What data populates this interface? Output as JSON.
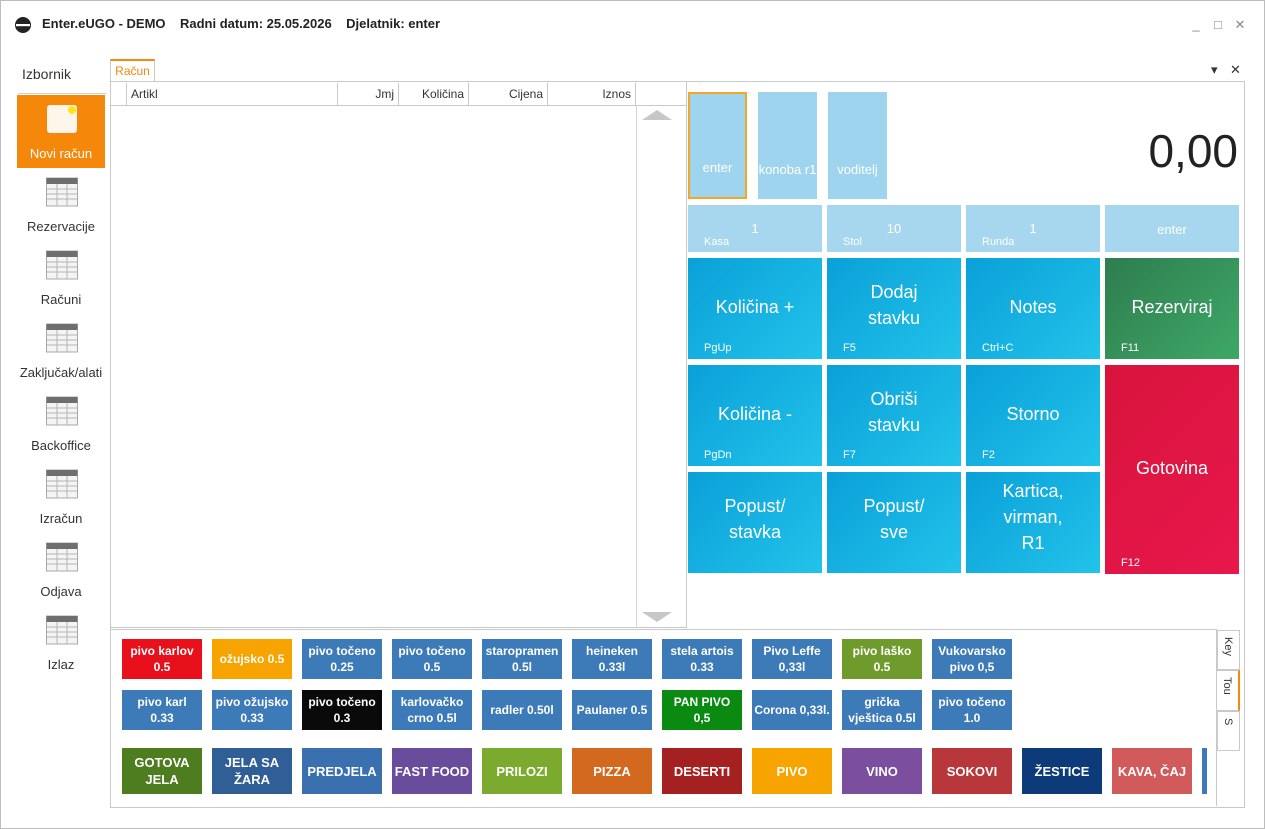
{
  "window": {
    "title": "Enter.eUGO - DEMO    Radni datum: 25.05.2026    Djelatnik: enter",
    "controls": [
      "_",
      "□",
      "✕"
    ]
  },
  "sidebar": {
    "title": "Izbornik",
    "items": [
      {
        "label": "Novi račun",
        "icon": "new-document-icon"
      },
      {
        "label": "Rezervacije",
        "icon": "grid-icon"
      },
      {
        "label": "Računi",
        "icon": "grid-icon"
      },
      {
        "label": "Zaključak/alati",
        "icon": "grid-icon"
      },
      {
        "label": "Backoffice",
        "icon": "grid-icon"
      },
      {
        "label": "Izračun",
        "icon": "grid-icon"
      },
      {
        "label": "Odjava",
        "icon": "grid-icon"
      },
      {
        "label": "Izlaz",
        "icon": "grid-icon"
      }
    ]
  },
  "tab": {
    "label": "Račun",
    "dropdown": "▾",
    "close": "✕"
  },
  "table": {
    "columns": [
      "Artikl",
      "Jmj",
      "Količina",
      "Cijena",
      "Iznos"
    ]
  },
  "staff": [
    {
      "label": "enter",
      "selected": true
    },
    {
      "label": "konoba r1",
      "selected": false
    },
    {
      "label": "voditelj",
      "selected": false
    }
  ],
  "total": "0,00",
  "info": [
    {
      "label": "Kasa",
      "value": "1"
    },
    {
      "label": "Stol",
      "value": "10"
    },
    {
      "label": "Runda",
      "value": "1"
    },
    {
      "label": "",
      "value": "enter"
    }
  ],
  "actions": [
    {
      "label": "Količina +",
      "key": "PgUp"
    },
    {
      "label": "Dodaj stavku",
      "key": "F5"
    },
    {
      "label": "Notes",
      "key": "Ctrl+C"
    },
    {
      "label": "Rezerviraj",
      "key": "F11"
    },
    {
      "label": "Količina -",
      "key": "PgDn"
    },
    {
      "label": "Obriši stavku",
      "key": "F7"
    },
    {
      "label": "Storno",
      "key": "F2"
    },
    {
      "label": "Gotovina",
      "key": "F12"
    },
    {
      "label": "Popust/ stavka",
      "key": ""
    },
    {
      "label": "Popust/ sve",
      "key": ""
    },
    {
      "label": "Kartica, virman, R1",
      "key": ""
    }
  ],
  "products_row1": [
    {
      "label": "pivo karlov 0.5",
      "color": "#e8101a"
    },
    {
      "label": "ožujsko 0.5",
      "color": "#f7a400"
    },
    {
      "label": "pivo točeno 0.25",
      "color": "#3d7ab8"
    },
    {
      "label": "pivo točeno 0.5",
      "color": "#3d7ab8"
    },
    {
      "label": "staropramen 0.5l",
      "color": "#3d7ab8"
    },
    {
      "label": "heineken 0.33l",
      "color": "#3d7ab8"
    },
    {
      "label": "stela artois 0.33",
      "color": "#3d7ab8"
    },
    {
      "label": "Pivo Leffe 0,33l",
      "color": "#3d7ab8"
    },
    {
      "label": "pivo laško 0.5",
      "color": "#6f9b2c"
    },
    {
      "label": "Vukovarsko pivo 0,5",
      "color": "#3d7ab8"
    }
  ],
  "products_row2": [
    {
      "label": "pivo karl 0.33",
      "color": "#3d7ab8"
    },
    {
      "label": "pivo ožujsko 0.33",
      "color": "#3d7ab8"
    },
    {
      "label": "pivo točeno 0.3",
      "color": "#0a0a0a"
    },
    {
      "label": "karlovačko crno 0.5l",
      "color": "#3d7ab8"
    },
    {
      "label": "radler 0.50l",
      "color": "#3d7ab8"
    },
    {
      "label": "Paulaner 0.5",
      "color": "#3d7ab8"
    },
    {
      "label": "PAN PIVO 0,5",
      "color": "#0a8a10"
    },
    {
      "label": "Corona 0,33l.",
      "color": "#3d7ab8"
    },
    {
      "label": "grička vještica 0.5l",
      "color": "#3d7ab8"
    },
    {
      "label": "pivo točeno 1.0",
      "color": "#3d7ab8"
    }
  ],
  "categories": [
    {
      "label": "GOTOVA JELA",
      "color": "#4e7d1f"
    },
    {
      "label": "JELA SA ŽARA",
      "color": "#2f5f96"
    },
    {
      "label": "PREDJELA",
      "color": "#3a6fb0"
    },
    {
      "label": "FAST FOOD",
      "color": "#6a4c9c"
    },
    {
      "label": "PRILOZI",
      "color": "#7caa2e"
    },
    {
      "label": "PIZZA",
      "color": "#d2691e"
    },
    {
      "label": "DESERTI",
      "color": "#a52121"
    },
    {
      "label": "PIVO",
      "color": "#f7a400"
    },
    {
      "label": "VINO",
      "color": "#7b4f9e"
    },
    {
      "label": "SOKOVI",
      "color": "#b8373a"
    },
    {
      "label": "ŽESTICE",
      "color": "#0d3a78"
    },
    {
      "label": "KAVA, ČAJ",
      "color": "#d15a5a"
    }
  ],
  "side_tabs": [
    "Key",
    "Tou",
    "S"
  ]
}
